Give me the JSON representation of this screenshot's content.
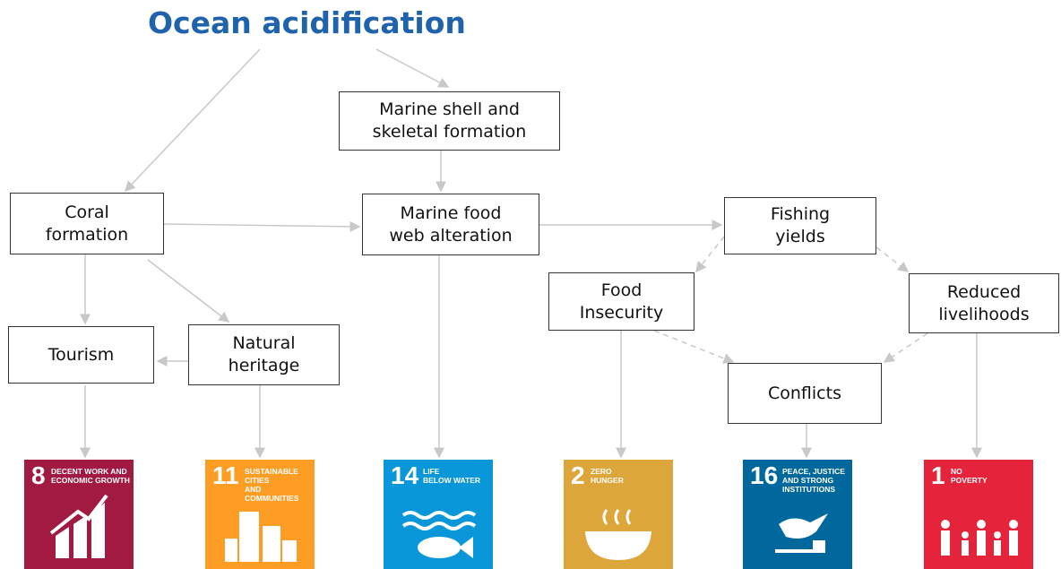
{
  "title": "Ocean acidification",
  "nodes": [
    {
      "lines": [
        "Marine shell and",
        "skeletal formation"
      ]
    },
    {
      "lines": [
        "Coral",
        "formation"
      ]
    },
    {
      "lines": [
        "Marine food",
        "web alteration"
      ]
    },
    {
      "lines": [
        "Fishing",
        "yields"
      ]
    },
    {
      "lines": [
        "Food",
        "Insecurity"
      ]
    },
    {
      "lines": [
        "Reduced",
        "livelihoods"
      ]
    },
    {
      "lines": [
        "Tourism"
      ]
    },
    {
      "lines": [
        "Natural",
        "heritage"
      ]
    },
    {
      "lines": [
        "Conflicts"
      ]
    }
  ],
  "goals": [
    {
      "number": "8",
      "lines": [
        "DECENT WORK AND",
        "ECONOMIC GROWTH"
      ]
    },
    {
      "number": "11",
      "lines": [
        "SUSTAINABLE CITIES",
        "AND COMMUNITIES"
      ]
    },
    {
      "number": "14",
      "lines": [
        "LIFE",
        "BELOW WATER"
      ]
    },
    {
      "number": "2",
      "lines": [
        "ZERO",
        "HUNGER"
      ]
    },
    {
      "number": "16",
      "lines": [
        "PEACE, JUSTICE",
        "AND STRONG",
        "INSTITUTIONS"
      ]
    },
    {
      "number": "1",
      "lines": [
        "NO",
        "POVERTY"
      ]
    }
  ]
}
